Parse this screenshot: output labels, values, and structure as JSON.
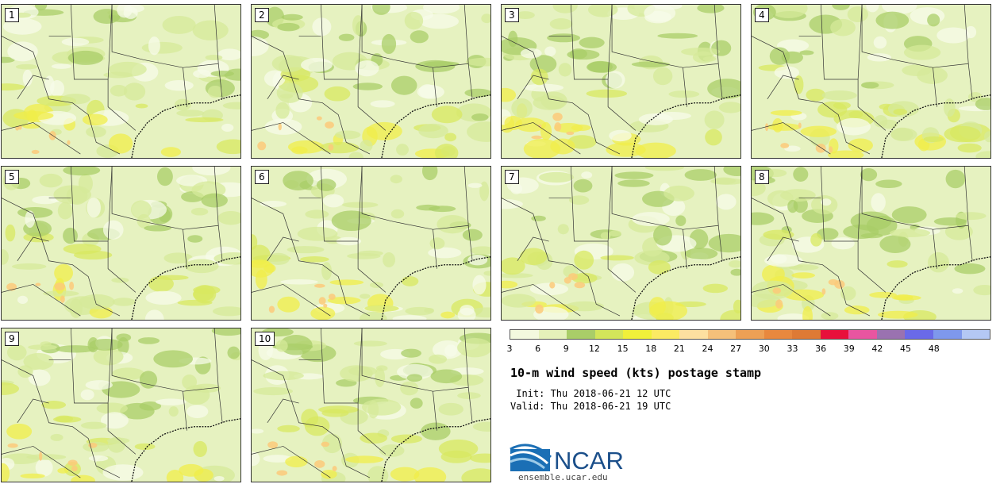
{
  "panels": [
    {
      "label": "1"
    },
    {
      "label": "2"
    },
    {
      "label": "3"
    },
    {
      "label": "4"
    },
    {
      "label": "5"
    },
    {
      "label": "6"
    },
    {
      "label": "7"
    },
    {
      "label": "8"
    },
    {
      "label": "9"
    },
    {
      "label": "10"
    }
  ],
  "colorbar": {
    "ticks": [
      "3",
      "6",
      "9",
      "12",
      "15",
      "18",
      "21",
      "24",
      "27",
      "30",
      "33",
      "36",
      "39",
      "42",
      "45",
      "48"
    ],
    "colors": [
      "#f3f9de",
      "#e5f1b9",
      "#a9cd68",
      "#d3e55a",
      "#f0f03a",
      "#fbea63",
      "#fde0a0",
      "#f5c07a",
      "#eda055",
      "#e8883e",
      "#de7a35",
      "#e8103b",
      "#e855a0",
      "#9a72b0",
      "#6a6ae8",
      "#7e98ec",
      "#b4c8f4"
    ]
  },
  "title": "10-m wind speed (kts) postage stamp",
  "init_line": " Init: Thu 2018-06-21 12 UTC",
  "valid_line": "Valid: Thu 2018-06-21 19 UTC",
  "logo": {
    "text": "NCAR",
    "url": "ensemble.ucar.edu"
  }
}
